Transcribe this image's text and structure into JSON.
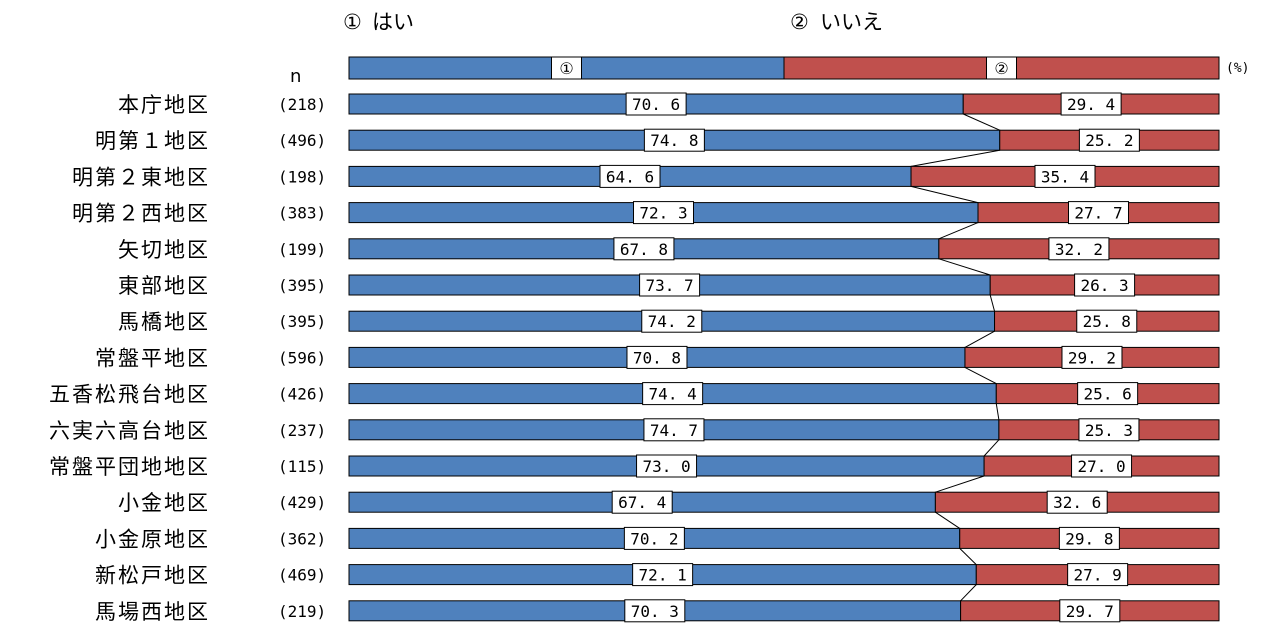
{
  "legend": [
    {
      "marker": "①",
      "label": "はい"
    },
    {
      "marker": "②",
      "label": "いいえ"
    }
  ],
  "n_header": "n",
  "unit_label": "(%)",
  "header_bar": {
    "markers": [
      "①",
      "②"
    ]
  },
  "colors": {
    "yes": "#4F81BD",
    "no": "#C0504D",
    "label_box": "#ffffff"
  },
  "chart_data": {
    "type": "bar",
    "orientation": "horizontal",
    "stacked": "100%",
    "xlim": [
      0,
      100
    ],
    "categories": [
      "本庁地区",
      "明第１地区",
      "明第２東地区",
      "明第２西地区",
      "矢切地区",
      "東部地区",
      "馬橋地区",
      "常盤平地区",
      "五香松飛台地区",
      "六実六高台地区",
      "常盤平団地地区",
      "小金地区",
      "小金原地区",
      "新松戸地区",
      "馬場西地区"
    ],
    "n": [
      "(218)",
      "(496)",
      "(198)",
      "(383)",
      "(199)",
      "(395)",
      "(395)",
      "(596)",
      "(426)",
      "(237)",
      "(115)",
      "(429)",
      "(362)",
      "(469)",
      "(219)"
    ],
    "series": [
      {
        "name": "はい",
        "values": [
          70.6,
          74.8,
          64.6,
          72.3,
          67.8,
          73.7,
          74.2,
          70.8,
          74.4,
          74.7,
          73.0,
          67.4,
          70.2,
          72.1,
          70.3
        ]
      },
      {
        "name": "いいえ",
        "values": [
          29.4,
          25.2,
          35.4,
          27.7,
          32.2,
          26.3,
          25.8,
          29.2,
          25.6,
          25.3,
          27.0,
          32.6,
          29.8,
          27.9,
          29.7
        ]
      }
    ]
  }
}
